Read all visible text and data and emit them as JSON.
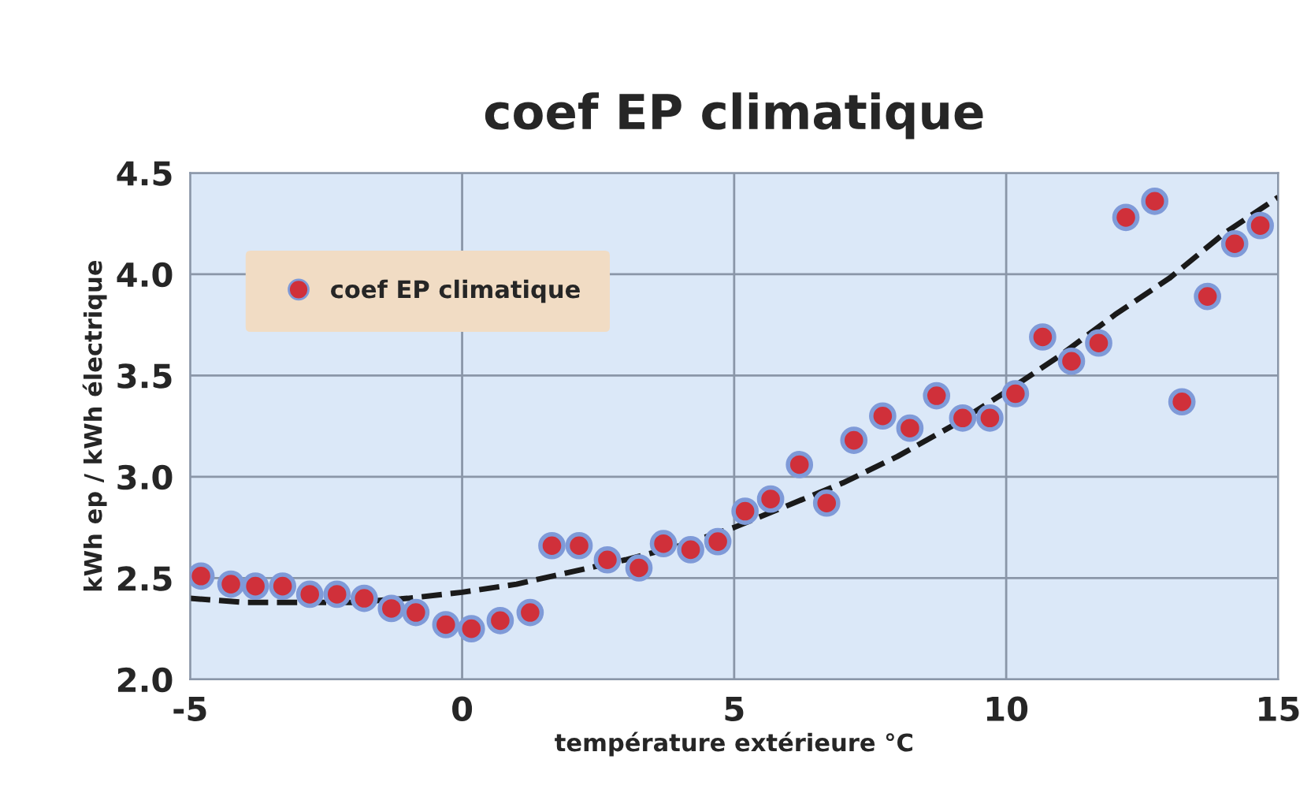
{
  "chart_data": {
    "type": "scatter",
    "title": "coef EP climatique",
    "xlabel": "température extérieure °C",
    "ylabel": "kWh ep / kWh électrique",
    "xlim": [
      -5,
      15
    ],
    "xticks": [
      -5,
      0,
      5,
      10,
      15
    ],
    "ylim": [
      2.0,
      4.5
    ],
    "yticks": [
      {
        "value": 2.0,
        "label": "2.0"
      },
      {
        "value": 2.5,
        "label": "2.5"
      },
      {
        "value": 3.0,
        "label": "3.0"
      },
      {
        "value": 3.5,
        "label": "3.5"
      },
      {
        "value": 4.0,
        "label": "4.0"
      },
      {
        "value": 4.5,
        "label": "4.5"
      }
    ],
    "grid": true,
    "legend": "top left",
    "marker": "circle",
    "series": [
      {
        "name": "coef EP climatique",
        "color": "#d0303a",
        "x": [
          -4.8,
          -4.25,
          -3.8,
          -3.3,
          -2.8,
          -2.3,
          -1.8,
          -1.3,
          -0.85,
          -0.3,
          0.17,
          0.7,
          1.25,
          1.65,
          2.15,
          2.67,
          3.25,
          3.7,
          4.2,
          4.7,
          5.2,
          5.67,
          6.2,
          6.7,
          7.2,
          7.73,
          8.23,
          8.72,
          9.2,
          9.7,
          10.17,
          10.67,
          11.2,
          11.7,
          12.2,
          12.73,
          13.23,
          13.7,
          14.2,
          14.67
        ],
        "values": [
          2.51,
          2.47,
          2.46,
          2.46,
          2.42,
          2.42,
          2.4,
          2.35,
          2.33,
          2.27,
          2.25,
          2.29,
          2.33,
          2.66,
          2.66,
          2.59,
          2.55,
          2.67,
          2.64,
          2.68,
          2.83,
          2.89,
          3.06,
          2.87,
          3.18,
          3.3,
          3.24,
          3.4,
          3.29,
          3.29,
          3.41,
          3.69,
          3.57,
          3.66,
          4.28,
          4.36,
          3.37,
          3.89,
          4.15,
          4.24
        ]
      },
      {
        "type": "line",
        "line_style": "dashed",
        "marker": "none",
        "color": "#1a1a1a",
        "x": [
          -5,
          -4,
          -3,
          -2,
          -1,
          0,
          1,
          2,
          3,
          4,
          5,
          6,
          7,
          8,
          9,
          10,
          11,
          12,
          13,
          14,
          15
        ],
        "values": [
          2.4,
          2.38,
          2.38,
          2.38,
          2.4,
          2.43,
          2.47,
          2.53,
          2.59,
          2.66,
          2.75,
          2.86,
          2.97,
          3.1,
          3.25,
          3.42,
          3.6,
          3.8,
          3.98,
          4.2,
          4.38
        ]
      }
    ]
  }
}
